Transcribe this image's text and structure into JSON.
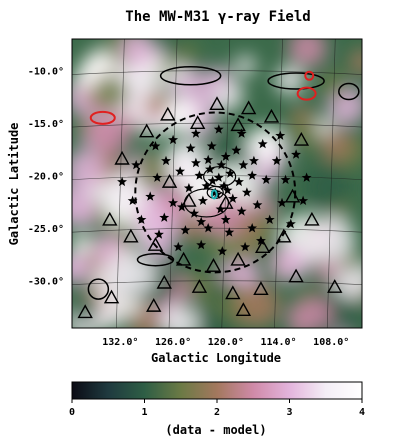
{
  "chart_data": {
    "type": "heatmap",
    "title": "The MW-M31 γ-ray Field",
    "xlabel": "Galactic Longitude",
    "ylabel": "Galactic Latitude",
    "x_ticks": [
      "132.0°",
      "126.0°",
      "120.0°",
      "114.0°",
      "108.0°"
    ],
    "x_tick_values": [
      132,
      126,
      120,
      114,
      108
    ],
    "y_ticks": [
      "-10.0°",
      "-15.0°",
      "-20.0°",
      "-25.0°",
      "-30.0°"
    ],
    "y_tick_values": [
      -10,
      -15,
      -20,
      -25,
      -30
    ],
    "xlim": [
      137.5,
      104.5
    ],
    "ylim": [
      -34.5,
      -7
    ],
    "center": [
      121.2,
      -21.6
    ],
    "circle_radius_deg": 8.5,
    "colorbar": {
      "label": "(data - model)",
      "ticks": [
        "0",
        "1",
        "2",
        "3",
        "4"
      ],
      "range": [
        0,
        4
      ],
      "colors": [
        "#0b0b14",
        "#1f3a3f",
        "#2e5e45",
        "#6b7a45",
        "#a3785e",
        "#cf8aa8",
        "#e3b4dc",
        "#f4eef6",
        "#ffffff"
      ]
    },
    "stars": [
      [
        122.0,
        -18.5
      ],
      [
        120.5,
        -19.0
      ],
      [
        119.5,
        -19.8
      ],
      [
        121.5,
        -20.5
      ],
      [
        123.0,
        -20.0
      ],
      [
        118.5,
        -20.6
      ],
      [
        120.2,
        -21.0
      ],
      [
        121.0,
        -21.8
      ],
      [
        122.6,
        -22.4
      ],
      [
        119.2,
        -22.2
      ],
      [
        117.6,
        -21.6
      ],
      [
        124.2,
        -21.2
      ],
      [
        125.2,
        -19.6
      ],
      [
        126.0,
        -22.6
      ],
      [
        123.6,
        -23.6
      ],
      [
        120.6,
        -23.2
      ],
      [
        118.2,
        -23.4
      ],
      [
        116.4,
        -22.8
      ],
      [
        115.4,
        -20.4
      ],
      [
        116.8,
        -18.6
      ],
      [
        118.8,
        -17.6
      ],
      [
        121.6,
        -17.2
      ],
      [
        124.0,
        -17.4
      ],
      [
        126.8,
        -18.6
      ],
      [
        127.8,
        -20.2
      ],
      [
        128.6,
        -22.0
      ],
      [
        127.0,
        -24.0
      ],
      [
        124.6,
        -25.2
      ],
      [
        122.0,
        -25.0
      ],
      [
        119.6,
        -25.4
      ],
      [
        117.0,
        -25.0
      ],
      [
        115.0,
        -24.2
      ],
      [
        113.6,
        -22.6
      ],
      [
        113.2,
        -20.4
      ],
      [
        114.2,
        -18.6
      ],
      [
        115.8,
        -17.0
      ],
      [
        118.2,
        -16.0
      ],
      [
        120.8,
        -15.6
      ],
      [
        123.4,
        -16.0
      ],
      [
        126.0,
        -16.6
      ],
      [
        128.0,
        -17.2
      ],
      [
        130.2,
        -19.0
      ],
      [
        131.8,
        -20.6
      ],
      [
        130.6,
        -22.4
      ],
      [
        129.6,
        -24.2
      ],
      [
        127.6,
        -25.6
      ],
      [
        125.4,
        -26.8
      ],
      [
        122.8,
        -26.6
      ],
      [
        120.4,
        -27.2
      ],
      [
        117.8,
        -26.8
      ],
      [
        116.0,
        -26.2
      ],
      [
        112.6,
        -24.6
      ],
      [
        111.2,
        -22.4
      ],
      [
        110.8,
        -20.2
      ],
      [
        112.0,
        -18.0
      ],
      [
        113.8,
        -16.2
      ],
      [
        121.2,
        -21.6
      ],
      [
        120.8,
        -20.2
      ],
      [
        122.2,
        -21.0
      ],
      [
        119.8,
        -21.4
      ],
      [
        121.8,
        -19.4
      ],
      [
        120.0,
        -18.2
      ],
      [
        123.4,
        -18.8
      ],
      [
        118.0,
        -19.0
      ],
      [
        122.8,
        -24.4
      ],
      [
        120.0,
        -24.2
      ],
      [
        117.0,
        -20.0
      ],
      [
        125.0,
        -23.0
      ]
    ],
    "triangles": [
      [
        121.0,
        -13.2
      ],
      [
        117.4,
        -13.6
      ],
      [
        114.8,
        -14.4
      ],
      [
        126.6,
        -14.2
      ],
      [
        123.2,
        -15.0
      ],
      [
        129.0,
        -15.8
      ],
      [
        118.6,
        -15.2
      ],
      [
        111.4,
        -16.6
      ],
      [
        131.8,
        -18.4
      ],
      [
        112.4,
        -22.0
      ],
      [
        133.2,
        -24.2
      ],
      [
        130.8,
        -25.8
      ],
      [
        128.0,
        -26.6
      ],
      [
        113.4,
        -25.8
      ],
      [
        110.2,
        -24.2
      ],
      [
        124.8,
        -28.0
      ],
      [
        121.4,
        -28.6
      ],
      [
        118.6,
        -28.0
      ],
      [
        115.8,
        -26.8
      ],
      [
        127.0,
        -30.2
      ],
      [
        123.0,
        -30.6
      ],
      [
        119.2,
        -31.2
      ],
      [
        116.0,
        -30.8
      ],
      [
        112.0,
        -29.6
      ],
      [
        107.6,
        -30.6
      ],
      [
        133.0,
        -31.6
      ],
      [
        136.0,
        -33.0
      ],
      [
        118.0,
        -32.8
      ],
      [
        128.2,
        -32.4
      ],
      [
        126.4,
        -20.6
      ],
      [
        120.0,
        -22.6
      ],
      [
        124.2,
        -22.4
      ]
    ]
  }
}
